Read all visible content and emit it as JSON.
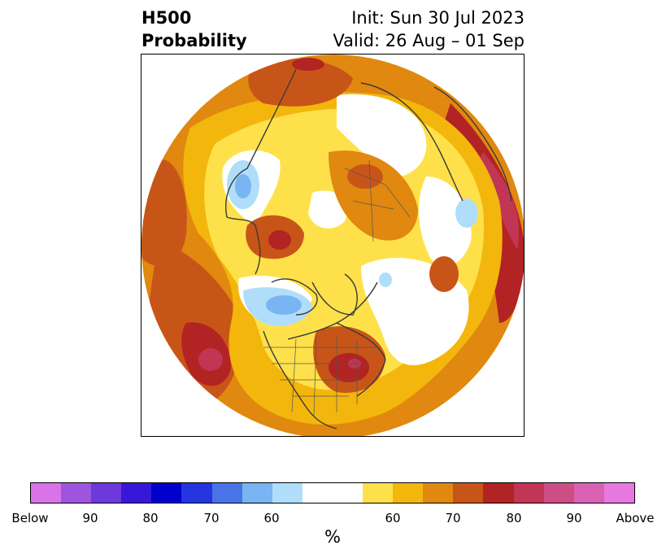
{
  "title": {
    "left_line1": "H500",
    "left_line2": "Probability",
    "right_line1": "Init: Sun 30 Jul 2023",
    "right_line2": "Valid: 26 Aug – 01 Sep"
  },
  "colorbar": {
    "segments": [
      {
        "color": "#d873e8",
        "weight": 1
      },
      {
        "color": "#9d55e0",
        "weight": 1
      },
      {
        "color": "#6d38dc",
        "weight": 1
      },
      {
        "color": "#3818d8",
        "weight": 1
      },
      {
        "color": "#0000cd",
        "weight": 1
      },
      {
        "color": "#2535e0",
        "weight": 1
      },
      {
        "color": "#4a73e8",
        "weight": 1
      },
      {
        "color": "#79b4f3",
        "weight": 1
      },
      {
        "color": "#b0defa",
        "weight": 1
      },
      {
        "color": "#ffffff",
        "weight": 2
      },
      {
        "color": "#fee14a",
        "weight": 1
      },
      {
        "color": "#f3b60c",
        "weight": 1
      },
      {
        "color": "#e0880f",
        "weight": 1
      },
      {
        "color": "#c85518",
        "weight": 1
      },
      {
        "color": "#b22323",
        "weight": 1
      },
      {
        "color": "#c13654",
        "weight": 1
      },
      {
        "color": "#cd4e84",
        "weight": 1
      },
      {
        "color": "#da62b4",
        "weight": 1
      },
      {
        "color": "#e67ae0",
        "weight": 1
      }
    ],
    "ticks": [
      "Below",
      "90",
      "80",
      "70",
      "60",
      "60",
      "70",
      "80",
      "90",
      "Above"
    ],
    "unit": "%"
  }
}
